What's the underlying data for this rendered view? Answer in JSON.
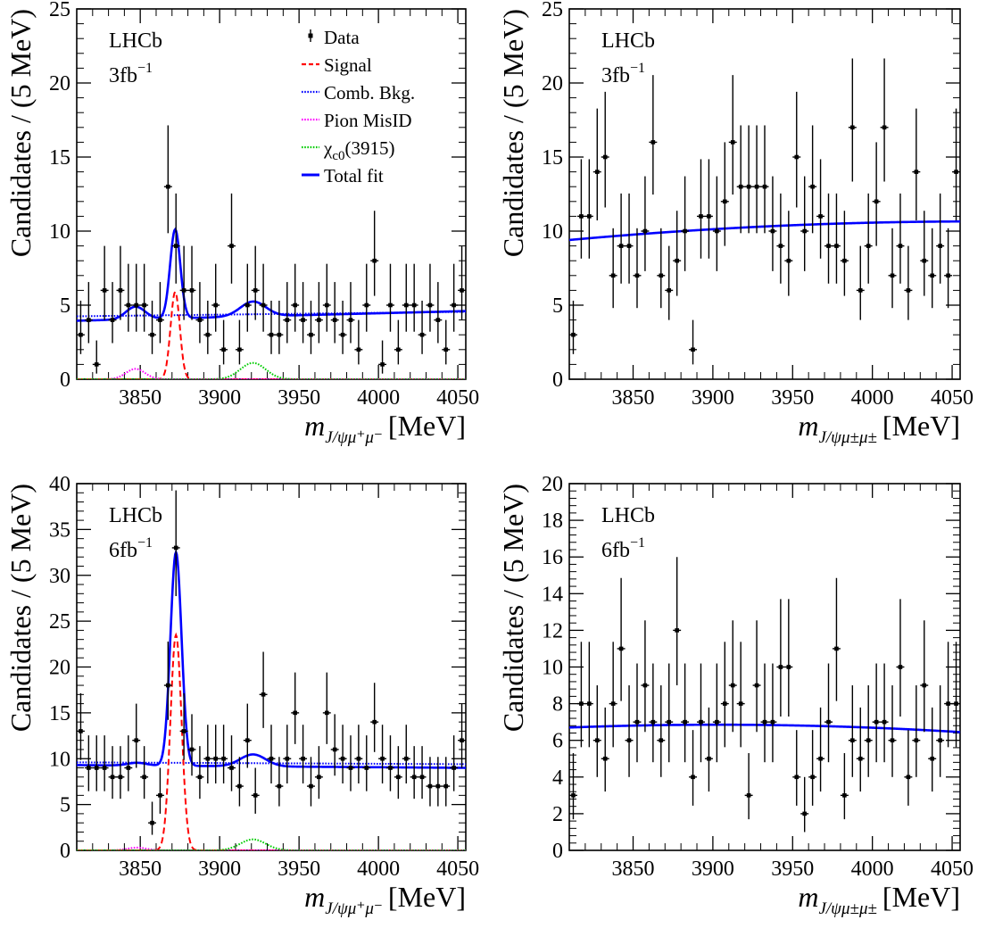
{
  "chart_data": [
    {
      "id": "tl",
      "type": "scatter",
      "label_text": "LHCb",
      "lumi": "3fb",
      "lumi_sup": "−1",
      "ylabel": "Candidates / (5 MeV)",
      "xlabel_main": "m",
      "xlabel_sub": "J/ψμ⁺μ⁻",
      "xlabel_unit": "[MeV]",
      "xlim": [
        3810,
        4055
      ],
      "ylim": [
        0,
        25
      ],
      "xticks": [
        3850,
        3900,
        3950,
        4000,
        4050
      ],
      "yticks": [
        0,
        5,
        10,
        15,
        20,
        25
      ],
      "legend": {
        "position": "top-center",
        "entries": [
          {
            "label": "Data",
            "style": "marker",
            "color": "#000000"
          },
          {
            "label": "Signal",
            "style": "dashed",
            "color": "#ff0000"
          },
          {
            "label": "Comb. Bkg.",
            "style": "dotted",
            "color": "#0000ff"
          },
          {
            "label": "Pion MisID",
            "style": "dotted",
            "color": "#ff00ff"
          },
          {
            "label": "χ",
            "sub": "c0",
            "post": "(3915)",
            "style": "dotted",
            "color": "#00cc00"
          },
          {
            "label": "Total fit",
            "style": "solid",
            "color": "#0000ff"
          }
        ]
      },
      "data_points": [
        {
          "x": 3812.5,
          "y": 3
        },
        {
          "x": 3817.5,
          "y": 4
        },
        {
          "x": 3822.5,
          "y": 1
        },
        {
          "x": 3827.5,
          "y": 6
        },
        {
          "x": 3832.5,
          "y": 4
        },
        {
          "x": 3837.5,
          "y": 6
        },
        {
          "x": 3842.5,
          "y": 5
        },
        {
          "x": 3847.5,
          "y": 5
        },
        {
          "x": 3852.5,
          "y": 5
        },
        {
          "x": 3857.5,
          "y": 3
        },
        {
          "x": 3862.5,
          "y": 4
        },
        {
          "x": 3867.5,
          "y": 13
        },
        {
          "x": 3872.5,
          "y": 9
        },
        {
          "x": 3877.5,
          "y": 6
        },
        {
          "x": 3882.5,
          "y": 6
        },
        {
          "x": 3887.5,
          "y": 4
        },
        {
          "x": 3892.5,
          "y": 3
        },
        {
          "x": 3897.5,
          "y": 5
        },
        {
          "x": 3902.5,
          "y": 2
        },
        {
          "x": 3907.5,
          "y": 9
        },
        {
          "x": 3912.5,
          "y": 2
        },
        {
          "x": 3917.5,
          "y": 5
        },
        {
          "x": 3922.5,
          "y": 6
        },
        {
          "x": 3927.5,
          "y": 5
        },
        {
          "x": 3932.5,
          "y": 3
        },
        {
          "x": 3937.5,
          "y": 3
        },
        {
          "x": 3942.5,
          "y": 4
        },
        {
          "x": 3947.5,
          "y": 5
        },
        {
          "x": 3952.5,
          "y": 4
        },
        {
          "x": 3957.5,
          "y": 3
        },
        {
          "x": 3962.5,
          "y": 4
        },
        {
          "x": 3967.5,
          "y": 5
        },
        {
          "x": 3972.5,
          "y": 4
        },
        {
          "x": 3977.5,
          "y": 3
        },
        {
          "x": 3982.5,
          "y": 4
        },
        {
          "x": 3987.5,
          "y": 2
        },
        {
          "x": 3992.5,
          "y": 5
        },
        {
          "x": 3997.5,
          "y": 8
        },
        {
          "x": 4002.5,
          "y": 1
        },
        {
          "x": 4007.5,
          "y": 5
        },
        {
          "x": 4012.5,
          "y": 2
        },
        {
          "x": 4017.5,
          "y": 5
        },
        {
          "x": 4022.5,
          "y": 5
        },
        {
          "x": 4027.5,
          "y": 3
        },
        {
          "x": 4032.5,
          "y": 5
        },
        {
          "x": 4037.5,
          "y": 4
        },
        {
          "x": 4042.5,
          "y": 2
        },
        {
          "x": 4047.5,
          "y": 5
        },
        {
          "x": 4052.5,
          "y": 6
        }
      ],
      "curves": [
        {
          "name": "Comb. Bkg.",
          "style": "dotted",
          "color": "#0000ff",
          "shape": "linear",
          "start": 4.25,
          "end": 4.55
        },
        {
          "name": "Signal",
          "style": "dashed",
          "color": "#ff0000",
          "shape": "gaussian",
          "peak": 5.9,
          "mean": 3872,
          "sigma": 2.9
        },
        {
          "name": "Pion MisID",
          "style": "dotted",
          "color": "#ff00ff",
          "shape": "gaussian",
          "peak": 0.7,
          "mean": 3847,
          "sigma": 6
        },
        {
          "name": "χc0(3915)",
          "style": "dotted",
          "color": "#00cc00",
          "shape": "gaussian",
          "peak": 1.1,
          "mean": 3921,
          "sigma": 8
        },
        {
          "name": "Total fit",
          "style": "solid",
          "color": "#0000ff",
          "shape": "total",
          "base_start": 3.95,
          "base_end": 4.6,
          "bumps": [
            {
              "peak": 6.0,
              "mean": 3872,
              "sigma": 3.2
            },
            {
              "peak": 0.85,
              "mean": 3847,
              "sigma": 6
            },
            {
              "peak": 1.0,
              "mean": 3921,
              "sigma": 8
            }
          ]
        }
      ]
    },
    {
      "id": "tr",
      "type": "scatter",
      "label_text": "LHCb",
      "lumi": "3fb",
      "lumi_sup": "−1",
      "ylabel": "Candidates / (5 MeV)",
      "xlabel_main": "m",
      "xlabel_sub": "J/ψμ±μ±",
      "xlabel_unit": "[MeV]",
      "xlim": [
        3810,
        4055
      ],
      "ylim": [
        0,
        25
      ],
      "xticks": [
        3850,
        3900,
        3950,
        4000,
        4050
      ],
      "yticks": [
        0,
        5,
        10,
        15,
        20,
        25
      ],
      "data_points": [
        {
          "x": 3812.5,
          "y": 3
        },
        {
          "x": 3817.5,
          "y": 11
        },
        {
          "x": 3822.5,
          "y": 11
        },
        {
          "x": 3827.5,
          "y": 14
        },
        {
          "x": 3832.5,
          "y": 15
        },
        {
          "x": 3837.5,
          "y": 7
        },
        {
          "x": 3842.5,
          "y": 9
        },
        {
          "x": 3847.5,
          "y": 9
        },
        {
          "x": 3852.5,
          "y": 7
        },
        {
          "x": 3857.5,
          "y": 10
        },
        {
          "x": 3862.5,
          "y": 16
        },
        {
          "x": 3867.5,
          "y": 7
        },
        {
          "x": 3872.5,
          "y": 6
        },
        {
          "x": 3877.5,
          "y": 8
        },
        {
          "x": 3882.5,
          "y": 10
        },
        {
          "x": 3887.5,
          "y": 2
        },
        {
          "x": 3892.5,
          "y": 11
        },
        {
          "x": 3897.5,
          "y": 11
        },
        {
          "x": 3902.5,
          "y": 10
        },
        {
          "x": 3907.5,
          "y": 12
        },
        {
          "x": 3912.5,
          "y": 16
        },
        {
          "x": 3917.5,
          "y": 13
        },
        {
          "x": 3922.5,
          "y": 13
        },
        {
          "x": 3927.5,
          "y": 13
        },
        {
          "x": 3932.5,
          "y": 13
        },
        {
          "x": 3937.5,
          "y": 10
        },
        {
          "x": 3942.5,
          "y": 9
        },
        {
          "x": 3947.5,
          "y": 8
        },
        {
          "x": 3952.5,
          "y": 15
        },
        {
          "x": 3957.5,
          "y": 10
        },
        {
          "x": 3962.5,
          "y": 13
        },
        {
          "x": 3967.5,
          "y": 11
        },
        {
          "x": 3972.5,
          "y": 9
        },
        {
          "x": 3977.5,
          "y": 9
        },
        {
          "x": 3982.5,
          "y": 8
        },
        {
          "x": 3987.5,
          "y": 17
        },
        {
          "x": 3992.5,
          "y": 6
        },
        {
          "x": 3997.5,
          "y": 9
        },
        {
          "x": 4002.5,
          "y": 12
        },
        {
          "x": 4007.5,
          "y": 17
        },
        {
          "x": 4012.5,
          "y": 7
        },
        {
          "x": 4017.5,
          "y": 9
        },
        {
          "x": 4022.5,
          "y": 6
        },
        {
          "x": 4027.5,
          "y": 14
        },
        {
          "x": 4032.5,
          "y": 8
        },
        {
          "x": 4037.5,
          "y": 7
        },
        {
          "x": 4042.5,
          "y": 9
        },
        {
          "x": 4047.5,
          "y": 7
        },
        {
          "x": 4052.5,
          "y": 14
        }
      ],
      "curves": [
        {
          "name": "Total fit",
          "style": "solid",
          "color": "#0000ff",
          "shape": "quadratic",
          "points": [
            [
              3810,
              9.4
            ],
            [
              3930,
              10.3
            ],
            [
              4055,
              10.65
            ]
          ]
        }
      ]
    },
    {
      "id": "bl",
      "type": "scatter",
      "label_text": "LHCb",
      "lumi": "6fb",
      "lumi_sup": "−1",
      "ylabel": "Candidates / (5 MeV)",
      "xlabel_main": "m",
      "xlabel_sub": "J/ψμ⁺μ⁻",
      "xlabel_unit": "[MeV]",
      "xlim": [
        3810,
        4055
      ],
      "ylim": [
        0,
        40
      ],
      "xticks": [
        3850,
        3900,
        3950,
        4000,
        4050
      ],
      "yticks": [
        0,
        5,
        10,
        15,
        20,
        25,
        30,
        35,
        40
      ],
      "data_points": [
        {
          "x": 3812.5,
          "y": 13
        },
        {
          "x": 3817.5,
          "y": 9
        },
        {
          "x": 3822.5,
          "y": 9
        },
        {
          "x": 3827.5,
          "y": 9
        },
        {
          "x": 3832.5,
          "y": 8
        },
        {
          "x": 3837.5,
          "y": 8
        },
        {
          "x": 3842.5,
          "y": 9
        },
        {
          "x": 3847.5,
          "y": 12
        },
        {
          "x": 3852.5,
          "y": 8
        },
        {
          "x": 3857.5,
          "y": 3
        },
        {
          "x": 3862.5,
          "y": 6
        },
        {
          "x": 3867.5,
          "y": 18
        },
        {
          "x": 3872.5,
          "y": 33
        },
        {
          "x": 3877.5,
          "y": 13
        },
        {
          "x": 3882.5,
          "y": 11
        },
        {
          "x": 3887.5,
          "y": 8
        },
        {
          "x": 3892.5,
          "y": 10
        },
        {
          "x": 3897.5,
          "y": 10
        },
        {
          "x": 3902.5,
          "y": 10
        },
        {
          "x": 3907.5,
          "y": 9
        },
        {
          "x": 3912.5,
          "y": 7
        },
        {
          "x": 3917.5,
          "y": 12
        },
        {
          "x": 3922.5,
          "y": 6
        },
        {
          "x": 3927.5,
          "y": 17
        },
        {
          "x": 3932.5,
          "y": 10
        },
        {
          "x": 3937.5,
          "y": 7
        },
        {
          "x": 3942.5,
          "y": 10
        },
        {
          "x": 3947.5,
          "y": 15
        },
        {
          "x": 3952.5,
          "y": 10
        },
        {
          "x": 3957.5,
          "y": 7
        },
        {
          "x": 3962.5,
          "y": 8
        },
        {
          "x": 3967.5,
          "y": 15
        },
        {
          "x": 3972.5,
          "y": 11
        },
        {
          "x": 3977.5,
          "y": 10
        },
        {
          "x": 3982.5,
          "y": 9
        },
        {
          "x": 3987.5,
          "y": 10
        },
        {
          "x": 3992.5,
          "y": 9
        },
        {
          "x": 3997.5,
          "y": 14
        },
        {
          "x": 4002.5,
          "y": 10
        },
        {
          "x": 4007.5,
          "y": 9
        },
        {
          "x": 4012.5,
          "y": 8
        },
        {
          "x": 4017.5,
          "y": 10
        },
        {
          "x": 4022.5,
          "y": 8
        },
        {
          "x": 4027.5,
          "y": 8
        },
        {
          "x": 4032.5,
          "y": 7
        },
        {
          "x": 4037.5,
          "y": 7
        },
        {
          "x": 4042.5,
          "y": 7
        },
        {
          "x": 4047.5,
          "y": 9
        },
        {
          "x": 4052.5,
          "y": 12
        }
      ],
      "curves": [
        {
          "name": "Comb. Bkg.",
          "style": "dotted",
          "color": "#0000ff",
          "shape": "linear",
          "start": 9.6,
          "end": 9.4
        },
        {
          "name": "Signal",
          "style": "dashed",
          "color": "#ff0000",
          "shape": "gaussian",
          "peak": 23.5,
          "mean": 3872.5,
          "sigma": 3.5
        },
        {
          "name": "Pion MisID",
          "style": "dotted",
          "color": "#ff00ff",
          "shape": "gaussian",
          "peak": 0.3,
          "mean": 3848,
          "sigma": 6
        },
        {
          "name": "χc0(3915)",
          "style": "dotted",
          "color": "#00cc00",
          "shape": "gaussian",
          "peak": 1.2,
          "mean": 3921,
          "sigma": 8
        },
        {
          "name": "Total fit",
          "style": "solid",
          "color": "#0000ff",
          "shape": "total",
          "base_start": 9.3,
          "base_end": 9.0,
          "bumps": [
            {
              "peak": 23.3,
              "mean": 3872.5,
              "sigma": 3.5
            },
            {
              "peak": 0.3,
              "mean": 3848,
              "sigma": 6
            },
            {
              "peak": 1.3,
              "mean": 3921,
              "sigma": 8
            }
          ]
        }
      ]
    },
    {
      "id": "br",
      "type": "scatter",
      "label_text": "LHCb",
      "lumi": "6fb",
      "lumi_sup": "−1",
      "ylabel": "Candidates / (5 MeV)",
      "xlabel_main": "m",
      "xlabel_sub": "J/ψμ±μ±",
      "xlabel_unit": "[MeV]",
      "xlim": [
        3810,
        4055
      ],
      "ylim": [
        0,
        20
      ],
      "xticks": [
        3850,
        3900,
        3950,
        4000,
        4050
      ],
      "yticks": [
        0,
        2,
        4,
        6,
        8,
        10,
        12,
        14,
        16,
        18,
        20
      ],
      "data_points": [
        {
          "x": 3812.5,
          "y": 3
        },
        {
          "x": 3817.5,
          "y": 8
        },
        {
          "x": 3822.5,
          "y": 8
        },
        {
          "x": 3827.5,
          "y": 6
        },
        {
          "x": 3832.5,
          "y": 5
        },
        {
          "x": 3837.5,
          "y": 8
        },
        {
          "x": 3842.5,
          "y": 11
        },
        {
          "x": 3847.5,
          "y": 6
        },
        {
          "x": 3852.5,
          "y": 7
        },
        {
          "x": 3857.5,
          "y": 9
        },
        {
          "x": 3862.5,
          "y": 7
        },
        {
          "x": 3867.5,
          "y": 6
        },
        {
          "x": 3872.5,
          "y": 7
        },
        {
          "x": 3877.5,
          "y": 12
        },
        {
          "x": 3882.5,
          "y": 7
        },
        {
          "x": 3887.5,
          "y": 4
        },
        {
          "x": 3892.5,
          "y": 7
        },
        {
          "x": 3897.5,
          "y": 5
        },
        {
          "x": 3902.5,
          "y": 7
        },
        {
          "x": 3907.5,
          "y": 8
        },
        {
          "x": 3912.5,
          "y": 9
        },
        {
          "x": 3917.5,
          "y": 8
        },
        {
          "x": 3922.5,
          "y": 3
        },
        {
          "x": 3927.5,
          "y": 9
        },
        {
          "x": 3932.5,
          "y": 7
        },
        {
          "x": 3937.5,
          "y": 7
        },
        {
          "x": 3942.5,
          "y": 10
        },
        {
          "x": 3947.5,
          "y": 10
        },
        {
          "x": 3952.5,
          "y": 4
        },
        {
          "x": 3957.5,
          "y": 2
        },
        {
          "x": 3962.5,
          "y": 4
        },
        {
          "x": 3967.5,
          "y": 5
        },
        {
          "x": 3972.5,
          "y": 7
        },
        {
          "x": 3977.5,
          "y": 11
        },
        {
          "x": 3982.5,
          "y": 3
        },
        {
          "x": 3987.5,
          "y": 6
        },
        {
          "x": 3992.5,
          "y": 5
        },
        {
          "x": 3997.5,
          "y": 6
        },
        {
          "x": 4002.5,
          "y": 7
        },
        {
          "x": 4007.5,
          "y": 7
        },
        {
          "x": 4012.5,
          "y": 6
        },
        {
          "x": 4017.5,
          "y": 10
        },
        {
          "x": 4022.5,
          "y": 4
        },
        {
          "x": 4027.5,
          "y": 6
        },
        {
          "x": 4032.5,
          "y": 9
        },
        {
          "x": 4037.5,
          "y": 5
        },
        {
          "x": 4042.5,
          "y": 6
        },
        {
          "x": 4047.5,
          "y": 8
        },
        {
          "x": 4052.5,
          "y": 8
        }
      ],
      "curves": [
        {
          "name": "Total fit",
          "style": "solid",
          "color": "#0000ff",
          "shape": "quadratic",
          "points": [
            [
              3810,
              6.7
            ],
            [
              3915,
              6.85
            ],
            [
              4055,
              6.45
            ]
          ]
        }
      ]
    }
  ]
}
